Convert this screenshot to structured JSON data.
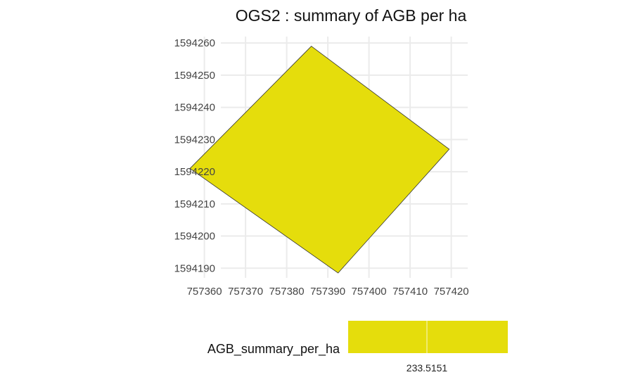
{
  "chart_data": {
    "type": "polygon-map",
    "title": "OGS2 : summary of AGB per ha",
    "xlabel": "",
    "ylabel": "",
    "xlim": [
      757364,
      757424
    ],
    "ylim": [
      1594187,
      1594262
    ],
    "x_ticks": [
      757360,
      757370,
      757380,
      757390,
      757400,
      757410,
      757420
    ],
    "x_tick_labels": [
      "757360",
      "757370",
      "757380",
      "757390",
      "757400",
      "757410",
      "757420"
    ],
    "y_ticks": [
      1594190,
      1594200,
      1594210,
      1594220,
      1594230,
      1594240,
      1594250,
      1594260
    ],
    "y_tick_labels": [
      "1594190",
      "1594200",
      "1594210",
      "1594220",
      "1594230",
      "1594240",
      "1594250",
      "1594260"
    ],
    "grid": true,
    "polygon": {
      "points": [
        [
          757386,
          1594259
        ],
        [
          757419.5,
          1594227
        ],
        [
          757392.5,
          1594188.5
        ],
        [
          757356.5,
          1594221
        ]
      ],
      "fill": "#E5DD0C",
      "stroke": "#333333"
    },
    "legend": {
      "title": "AGB_summary_per_ha",
      "placement": "bottom",
      "color": "#E5DD0C",
      "labels": [
        "233.5151"
      ]
    }
  }
}
